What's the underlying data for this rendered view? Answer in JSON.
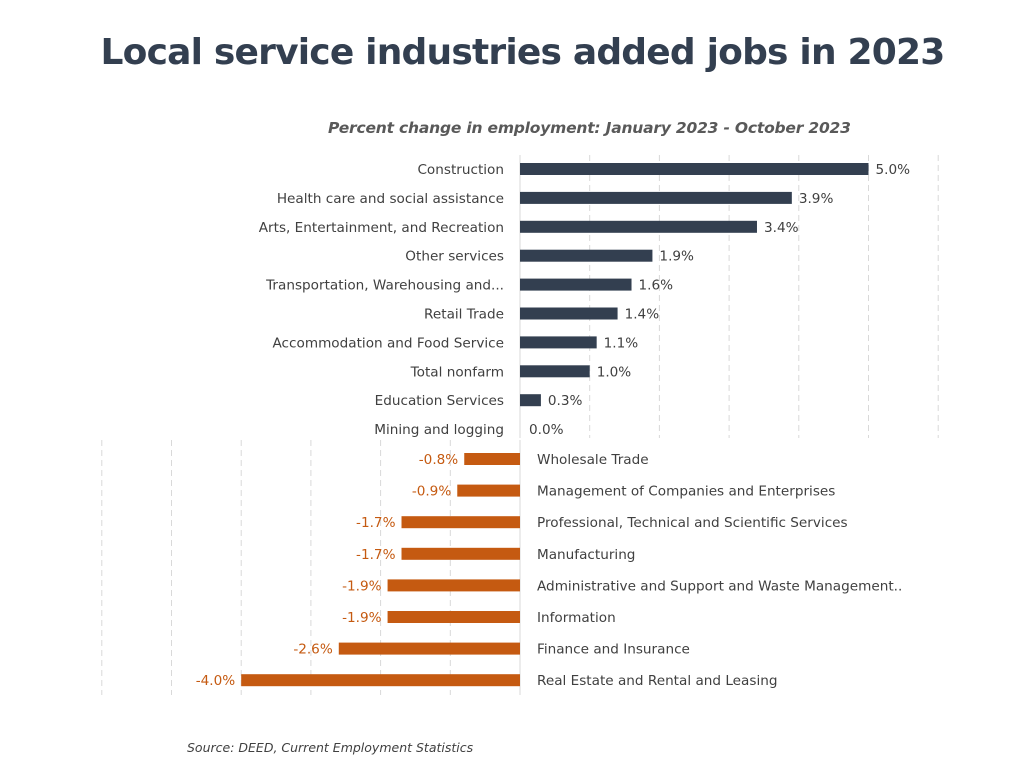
{
  "title": "Local service industries added jobs in 2023",
  "source": "Source: DEED, Current Employment Statistics",
  "chart_data": [
    {
      "type": "bar",
      "orientation": "horizontal",
      "title": "Local service industries added jobs in 2023",
      "subtitle": "Percent change in employment: January 2023 - October 2023",
      "panel": "positive",
      "xlim": [
        0,
        6
      ],
      "grid": true,
      "color": "#333F50",
      "categories": [
        "Construction",
        "Health care and social assistance",
        "Arts, Entertainment, and Recreation",
        "Other services",
        "Transportation, Warehousing and...",
        "Retail Trade",
        "Accommodation and Food Service",
        "Total nonfarm",
        "Education Services",
        "Mining and logging"
      ],
      "values": [
        5.0,
        3.9,
        3.4,
        1.9,
        1.6,
        1.4,
        1.1,
        1.0,
        0.3,
        0.0
      ],
      "labels": [
        "5.0%",
        "3.9%",
        "3.4%",
        "1.9%",
        "1.6%",
        "1.4%",
        "1.1%",
        "1.0%",
        "0.3%",
        "0.0%"
      ]
    },
    {
      "type": "bar",
      "orientation": "horizontal",
      "panel": "negative",
      "xlim": [
        -6,
        0
      ],
      "grid": true,
      "color": "#C55A11",
      "categories": [
        "Wholesale Trade",
        "Management of Companies and Enterprises",
        "Professional, Technical and Scientific Services",
        "Manufacturing",
        "Administrative and Support and Waste Management..",
        "Information",
        "Finance and Insurance",
        "Real Estate and Rental and Leasing"
      ],
      "values": [
        -0.8,
        -0.9,
        -1.7,
        -1.7,
        -1.9,
        -1.9,
        -2.6,
        -4.0
      ],
      "labels": [
        "-0.8%",
        "-0.9%",
        "-1.7%",
        "-1.7%",
        "-1.9%",
        "-1.9%",
        "-2.6%",
        "-4.0%"
      ]
    }
  ]
}
